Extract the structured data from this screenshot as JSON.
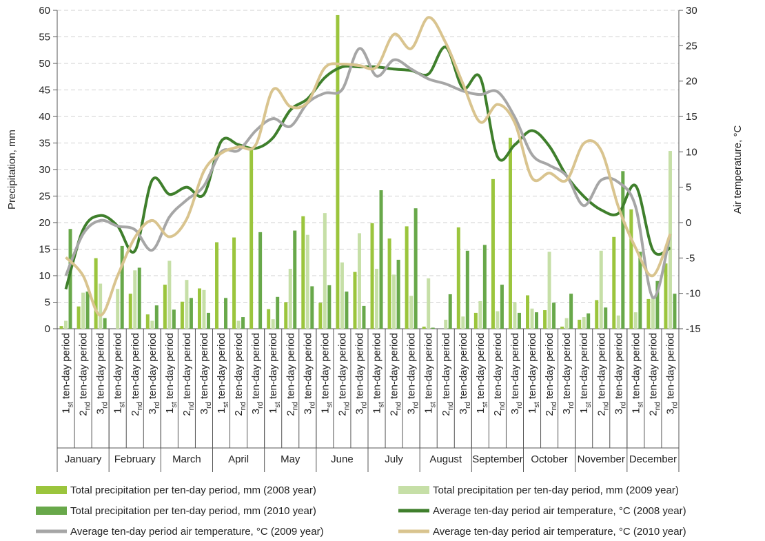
{
  "chart_data": {
    "type": "bar",
    "ylabel": "Precipitation, mm",
    "y2label": "Air temperature, °C",
    "categories": [
      "1st ten-day period",
      "2nd ten-day period",
      "3rd ten-day period",
      "1st ten-day period",
      "2nd ten-day period",
      "3rd ten-day period",
      "1st ten-day period",
      "2nd ten-day period",
      "3rd ten-day period",
      "1st ten-day period",
      "2nd ten-day period",
      "3rd ten-day period",
      "1st ten-day period",
      "2nd ten-day period",
      "3rd ten-day period",
      "1st ten-day period",
      "2nd ten-day period",
      "3rd ten-day period",
      "1st ten-day period",
      "2nd ten-day period",
      "3rd ten-day period",
      "1st ten-day period",
      "2nd ten-day period",
      "3rd ten-day period",
      "1st ten-day period",
      "2nd ten-day period",
      "3rd ten-day period",
      "1st ten-day period",
      "2nd ten-day period",
      "3rd ten-day period",
      "1st ten-day period",
      "2nd ten-day period",
      "3rd ten-day period",
      "1st ten-day period",
      "2nd ten-day period",
      "3rd ten-day period"
    ],
    "months": [
      "January",
      "February",
      "March",
      "April",
      "May",
      "June",
      "July",
      "August",
      "September",
      "October",
      "November",
      "December"
    ],
    "ylim": [
      0,
      60
    ],
    "yticks": [
      0,
      5,
      10,
      15,
      20,
      25,
      30,
      35,
      40,
      45,
      50,
      55,
      60
    ],
    "y2lim": [
      -15,
      30
    ],
    "y2ticks": [
      -15,
      -10,
      -5,
      0,
      5,
      10,
      15,
      20,
      25,
      30
    ],
    "grid": true,
    "series": [
      {
        "name": "Total precipitation per ten-day period, mm (2008 year)",
        "type": "bar",
        "color": "#9bc53d",
        "values": [
          0.5,
          4.2,
          13.3,
          0,
          6.6,
          2.7,
          8.3,
          5.1,
          7.6,
          16.3,
          17.2,
          34,
          3.7,
          5.0,
          21.2,
          4.9,
          59.1,
          10.7,
          19.9,
          17.0,
          19.3,
          0.4,
          0,
          19.1,
          3.0,
          28.2,
          36.0,
          6.3,
          3.5,
          0.4,
          1.7,
          5.4,
          17.3,
          22.5,
          5.6,
          12.3
        ]
      },
      {
        "name": "Total precipitation per ten-day period, mm (2009 year)",
        "type": "bar",
        "color": "#c6dfa7",
        "values": [
          1.5,
          6.8,
          8.5,
          7.5,
          11.0,
          1.5,
          12.8,
          9.2,
          7.3,
          0,
          1.5,
          0,
          1.8,
          11.3,
          17.7,
          21.8,
          12.5,
          18.0,
          11.3,
          10.2,
          6.2,
          9.5,
          1.7,
          2.3,
          5.2,
          3.3,
          5.0,
          3.8,
          14.5,
          2.0,
          2.2,
          14.7,
          2.5,
          3.1,
          5.9,
          33.5
        ]
      },
      {
        "name": "Total precipitation per ten-day period, mm (2010 year)",
        "type": "bar",
        "color": "#68a84a",
        "values": [
          18.8,
          7.0,
          2.0,
          15.6,
          11.5,
          4.4,
          3.6,
          5.8,
          3.0,
          5.8,
          2.2,
          18.2,
          6.0,
          18.5,
          8.0,
          8.2,
          7.0,
          4.3,
          26.1,
          13.0,
          22.7,
          0.2,
          6.5,
          14.7,
          15.8,
          8.3,
          3.0,
          3.1,
          4.9,
          6.6,
          2.9,
          4.0,
          29.7,
          14.5,
          9.0,
          6.6
        ]
      },
      {
        "name": "Average ten-day period air temperature, °C (2008 year)",
        "type": "line",
        "axis": "y2",
        "color": "#3f7f2c",
        "values": [
          -9.4,
          -1,
          1.0,
          -0.5,
          -4,
          6,
          4,
          5,
          4,
          11.5,
          11,
          10.5,
          12,
          15.9,
          17.5,
          20.5,
          22,
          22,
          22,
          21.7,
          21.5,
          21,
          24.8,
          19,
          20.5,
          9.3,
          11,
          13,
          10.8,
          6.6,
          3.7,
          1.8,
          1.3,
          5.2,
          -3.9,
          -3.6
        ]
      },
      {
        "name": "Average ten-day period air temperature, °C (2009 year)",
        "type": "line",
        "axis": "y2",
        "color": "#a6a6a6",
        "values": [
          -7.5,
          -1.6,
          0.3,
          -0.5,
          -1,
          -3.9,
          0.8,
          3.2,
          5.2,
          10,
          10.2,
          13,
          14.7,
          13.6,
          16.9,
          18.3,
          18.8,
          24.6,
          20.7,
          23,
          21.7,
          20.3,
          19.6,
          18.6,
          18.1,
          18.5,
          14.9,
          9.6,
          8.1,
          6.6,
          2.4,
          6,
          5.7,
          2.2,
          -10.6,
          -1.6
        ]
      },
      {
        "name": "Average ten-day period air temperature, °C (2010 year)",
        "type": "line",
        "axis": "y2",
        "color": "#d9c48f",
        "values": [
          -4.9,
          -7.5,
          -13.1,
          -7.5,
          -2.1,
          0.3,
          -2,
          0.5,
          7.3,
          9.8,
          10.7,
          11,
          18.8,
          16.4,
          17,
          21.9,
          22.4,
          22.2,
          22,
          26.6,
          24.6,
          29,
          25.4,
          19.6,
          14.2,
          16.7,
          14.1,
          6.3,
          7,
          6,
          11.2,
          10.2,
          2.2,
          -3.6,
          -7.5,
          -1.6
        ]
      }
    ]
  }
}
